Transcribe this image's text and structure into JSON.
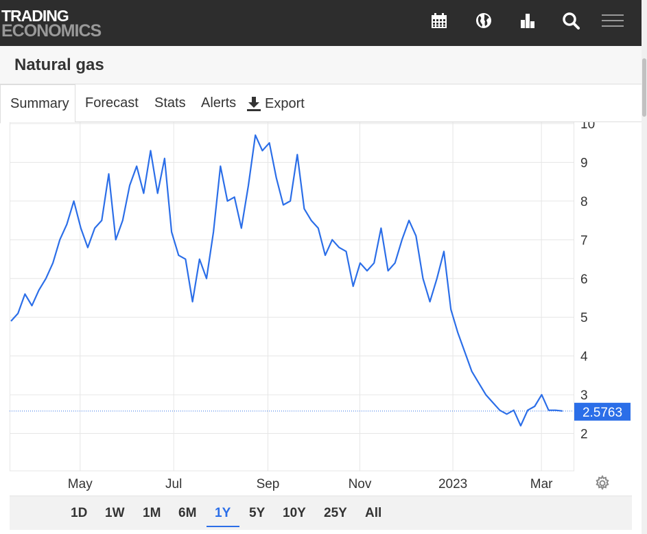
{
  "brand": {
    "line1": "TRADING",
    "line2": "ECONOMICS"
  },
  "header_icons": [
    "calendar-icon",
    "globe-icon",
    "bar-chart-icon",
    "search-icon",
    "menu-icon"
  ],
  "page": {
    "title": "Natural gas"
  },
  "tabs": [
    {
      "label": "Summary",
      "active": true
    },
    {
      "label": "Forecast",
      "active": false
    },
    {
      "label": "Stats",
      "active": false
    },
    {
      "label": "Alerts",
      "active": false
    },
    {
      "label": "Export",
      "active": false,
      "icon": "download-icon"
    }
  ],
  "ranges": [
    {
      "label": "1D",
      "active": false
    },
    {
      "label": "1W",
      "active": false
    },
    {
      "label": "1M",
      "active": false
    },
    {
      "label": "6M",
      "active": false
    },
    {
      "label": "1Y",
      "active": true
    },
    {
      "label": "5Y",
      "active": false
    },
    {
      "label": "10Y",
      "active": false
    },
    {
      "label": "25Y",
      "active": false
    },
    {
      "label": "All",
      "active": false
    }
  ],
  "colors": {
    "line": "#2b6ee8",
    "header_bg": "#2d2d2d",
    "accent": "#2b6ee8"
  },
  "chart_data": {
    "type": "line",
    "title": "",
    "xlabel": "",
    "ylabel": "",
    "ylim": [
      1,
      10
    ],
    "y_ticks": [
      "10",
      "9",
      "8",
      "7",
      "6",
      "5",
      "4",
      "3",
      "2"
    ],
    "x_ticks": [
      "May",
      "Jul",
      "Sep",
      "Nov",
      "2023",
      "Mar"
    ],
    "grid": true,
    "last_value": "2.5763",
    "series": [
      {
        "values": [
          4.9,
          5.1,
          5.6,
          5.3,
          5.7,
          6.0,
          6.4,
          7.0,
          7.4,
          8.0,
          7.3,
          6.8,
          7.3,
          7.5,
          8.7,
          7.0,
          7.5,
          8.4,
          8.9,
          8.2,
          9.3,
          8.2,
          9.1,
          7.2,
          6.6,
          6.5,
          5.4,
          6.5,
          6.0,
          7.2,
          8.9,
          8.0,
          8.1,
          7.3,
          8.4,
          9.7,
          9.3,
          9.5,
          8.6,
          7.9,
          8.0,
          9.2,
          7.8,
          7.5,
          7.3,
          6.6,
          7.0,
          6.8,
          6.7,
          5.8,
          6.4,
          6.2,
          6.4,
          7.3,
          6.2,
          6.4,
          7.0,
          7.5,
          7.1,
          6.0,
          5.4,
          6.0,
          6.7,
          5.2,
          4.6,
          4.1,
          3.6,
          3.3,
          3.0,
          2.8,
          2.6,
          2.5,
          2.6,
          2.2,
          2.6,
          2.7,
          3.0,
          2.6,
          2.6,
          2.58
        ]
      }
    ]
  }
}
